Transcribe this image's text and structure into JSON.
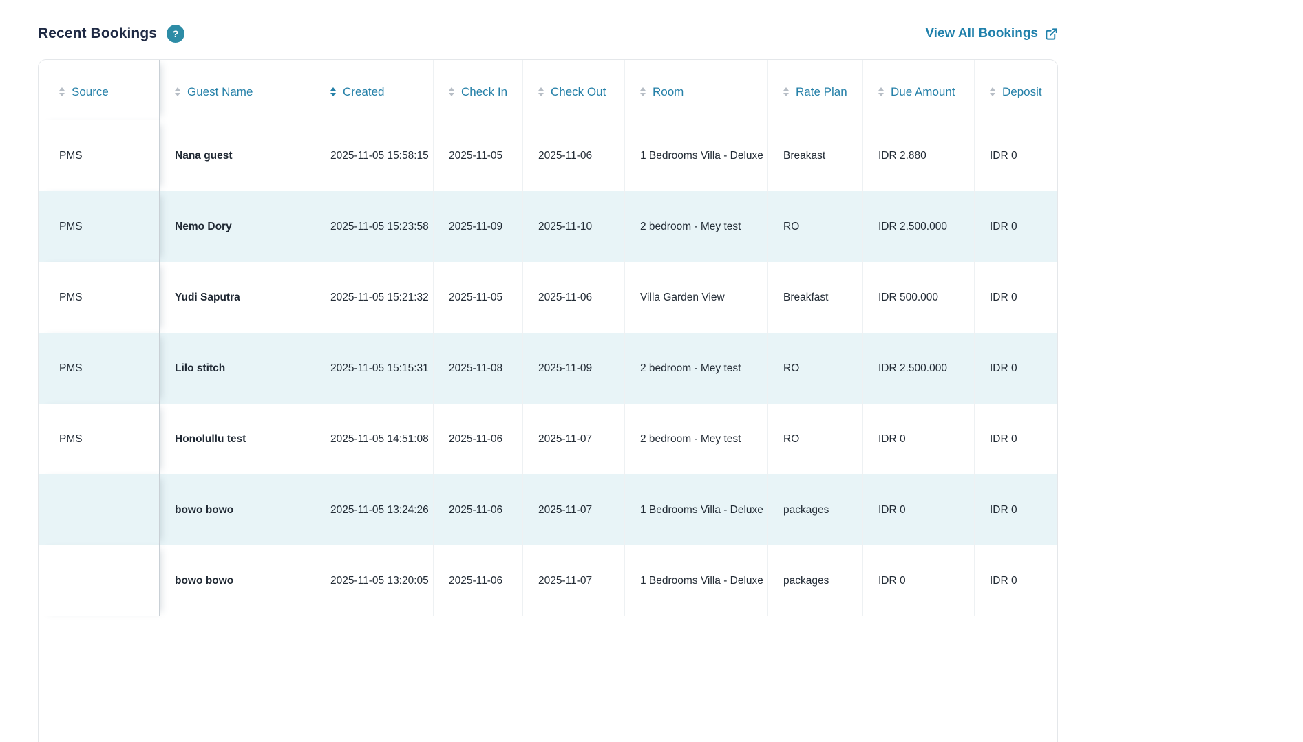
{
  "header": {
    "title": "Recent Bookings",
    "help_icon": "?",
    "view_all_label": "View All Bookings",
    "view_all_icon": "external-link",
    "accent_color": "#1f80ab",
    "help_icon_bg": "#2d8ca6"
  },
  "table": {
    "sort_icon": "up-down-arrows",
    "active_sort_column": "Created",
    "stripe_color": "#e8f4f7",
    "columns": [
      {
        "key": "source",
        "label": "Source",
        "active": false
      },
      {
        "key": "guest",
        "label": "Guest Name",
        "active": false
      },
      {
        "key": "created",
        "label": "Created",
        "active": true
      },
      {
        "key": "check_in",
        "label": "Check In",
        "active": false
      },
      {
        "key": "check_out",
        "label": "Check Out",
        "active": false
      },
      {
        "key": "room",
        "label": "Room",
        "active": false
      },
      {
        "key": "rate_plan",
        "label": "Rate Plan",
        "active": false
      },
      {
        "key": "due_amount",
        "label": "Due Amount",
        "active": false
      },
      {
        "key": "deposit",
        "label": "Deposit",
        "active": false
      }
    ],
    "rows": [
      {
        "source": "PMS",
        "guest": "Nana guest",
        "created": "2025-11-05 15:58:15",
        "check_in": "2025-11-05",
        "check_out": "2025-11-06",
        "room": "1 Bedrooms Villa - Deluxe",
        "rate_plan": "Breakast",
        "due_amount": "IDR 2.880",
        "deposit": "IDR 0"
      },
      {
        "source": "PMS",
        "guest": "Nemo Dory",
        "created": "2025-11-05 15:23:58",
        "check_in": "2025-11-09",
        "check_out": "2025-11-10",
        "room": "2 bedroom - Mey test",
        "rate_plan": "RO",
        "due_amount": "IDR 2.500.000",
        "deposit": "IDR 0"
      },
      {
        "source": "PMS",
        "guest": "Yudi Saputra",
        "created": "2025-11-05 15:21:32",
        "check_in": "2025-11-05",
        "check_out": "2025-11-06",
        "room": "Villa Garden View",
        "rate_plan": "Breakfast",
        "due_amount": "IDR 500.000",
        "deposit": "IDR 0"
      },
      {
        "source": "PMS",
        "guest": "Lilo stitch",
        "created": "2025-11-05 15:15:31",
        "check_in": "2025-11-08",
        "check_out": "2025-11-09",
        "room": "2 bedroom - Mey test",
        "rate_plan": "RO",
        "due_amount": "IDR 2.500.000",
        "deposit": "IDR 0"
      },
      {
        "source": "PMS",
        "guest": "Honolullu test",
        "created": "2025-11-05 14:51:08",
        "check_in": "2025-11-06",
        "check_out": "2025-11-07",
        "room": "2 bedroom - Mey test",
        "rate_plan": "RO",
        "due_amount": "IDR 0",
        "deposit": "IDR 0"
      },
      {
        "source": "",
        "guest": "bowo bowo",
        "created": "2025-11-05 13:24:26",
        "check_in": "2025-11-06",
        "check_out": "2025-11-07",
        "room": "1 Bedrooms Villa - Deluxe",
        "rate_plan": "packages",
        "due_amount": "IDR 0",
        "deposit": "IDR 0"
      },
      {
        "source": "",
        "guest": "bowo bowo",
        "created": "2025-11-05 13:20:05",
        "check_in": "2025-11-06",
        "check_out": "2025-11-07",
        "room": "1 Bedrooms Villa - Deluxe",
        "rate_plan": "packages",
        "due_amount": "IDR 0",
        "deposit": "IDR 0"
      }
    ]
  }
}
